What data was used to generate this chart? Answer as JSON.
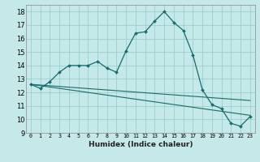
{
  "xlabel": "Humidex (Indice chaleur)",
  "xlim": [
    -0.5,
    23.5
  ],
  "ylim": [
    9,
    18.5
  ],
  "yticks": [
    9,
    10,
    11,
    12,
    13,
    14,
    15,
    16,
    17,
    18
  ],
  "xticks": [
    0,
    1,
    2,
    3,
    4,
    5,
    6,
    7,
    8,
    9,
    10,
    11,
    12,
    13,
    14,
    15,
    16,
    17,
    18,
    19,
    20,
    21,
    22,
    23
  ],
  "bg_color": "#c5e8e8",
  "line_color": "#1a6b6b",
  "grid_color": "#9dcece",
  "line1_x": [
    0,
    1,
    2,
    3,
    4,
    5,
    6,
    7,
    8,
    9,
    10,
    11,
    12,
    13,
    14,
    15,
    16,
    17,
    18,
    19,
    20,
    21,
    22,
    23
  ],
  "line1_y": [
    12.6,
    12.3,
    12.8,
    13.5,
    14.0,
    14.0,
    14.0,
    14.3,
    13.8,
    13.5,
    15.1,
    16.4,
    16.5,
    17.3,
    18.0,
    17.2,
    16.6,
    14.8,
    12.2,
    11.1,
    10.8,
    9.7,
    9.5,
    10.2
  ],
  "line2_x": [
    0,
    23
  ],
  "line2_y": [
    12.6,
    10.3
  ],
  "line3_x": [
    0,
    23
  ],
  "line3_y": [
    12.6,
    11.4
  ]
}
